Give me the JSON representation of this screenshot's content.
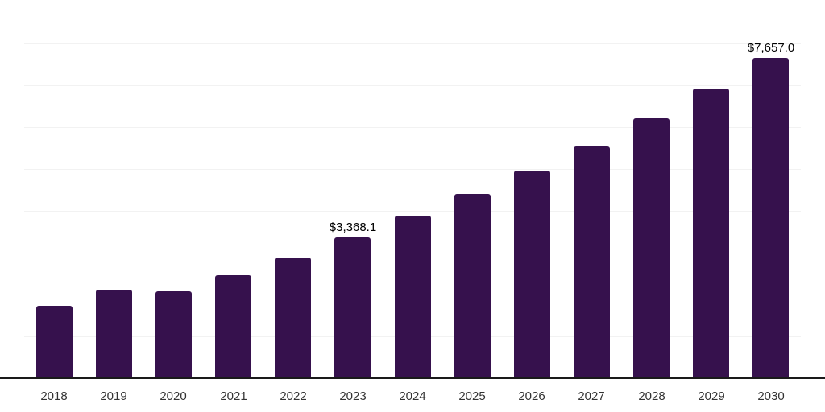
{
  "chart_data": {
    "type": "bar",
    "title": "",
    "xlabel": "",
    "ylabel": "",
    "categories": [
      "2018",
      "2019",
      "2020",
      "2021",
      "2022",
      "2023",
      "2024",
      "2025",
      "2026",
      "2027",
      "2028",
      "2029",
      "2030"
    ],
    "values": [
      1730,
      2115,
      2080,
      2465,
      2885,
      3368.1,
      3885,
      4405,
      4960,
      5540,
      6215,
      6925,
      7657
    ],
    "point_labels": {
      "2023": "$3,368.1",
      "2030": "$7,657.0"
    },
    "ylim": [
      0,
      9040
    ],
    "grid_step": 1000,
    "grid": true,
    "legend_position": "none",
    "bar_color": "#36114d",
    "axis_line_color": "#1a1a1a",
    "gridline_color": "#f2f2f2",
    "tick_label_color": "#333333",
    "data_label_color": "#000000"
  }
}
